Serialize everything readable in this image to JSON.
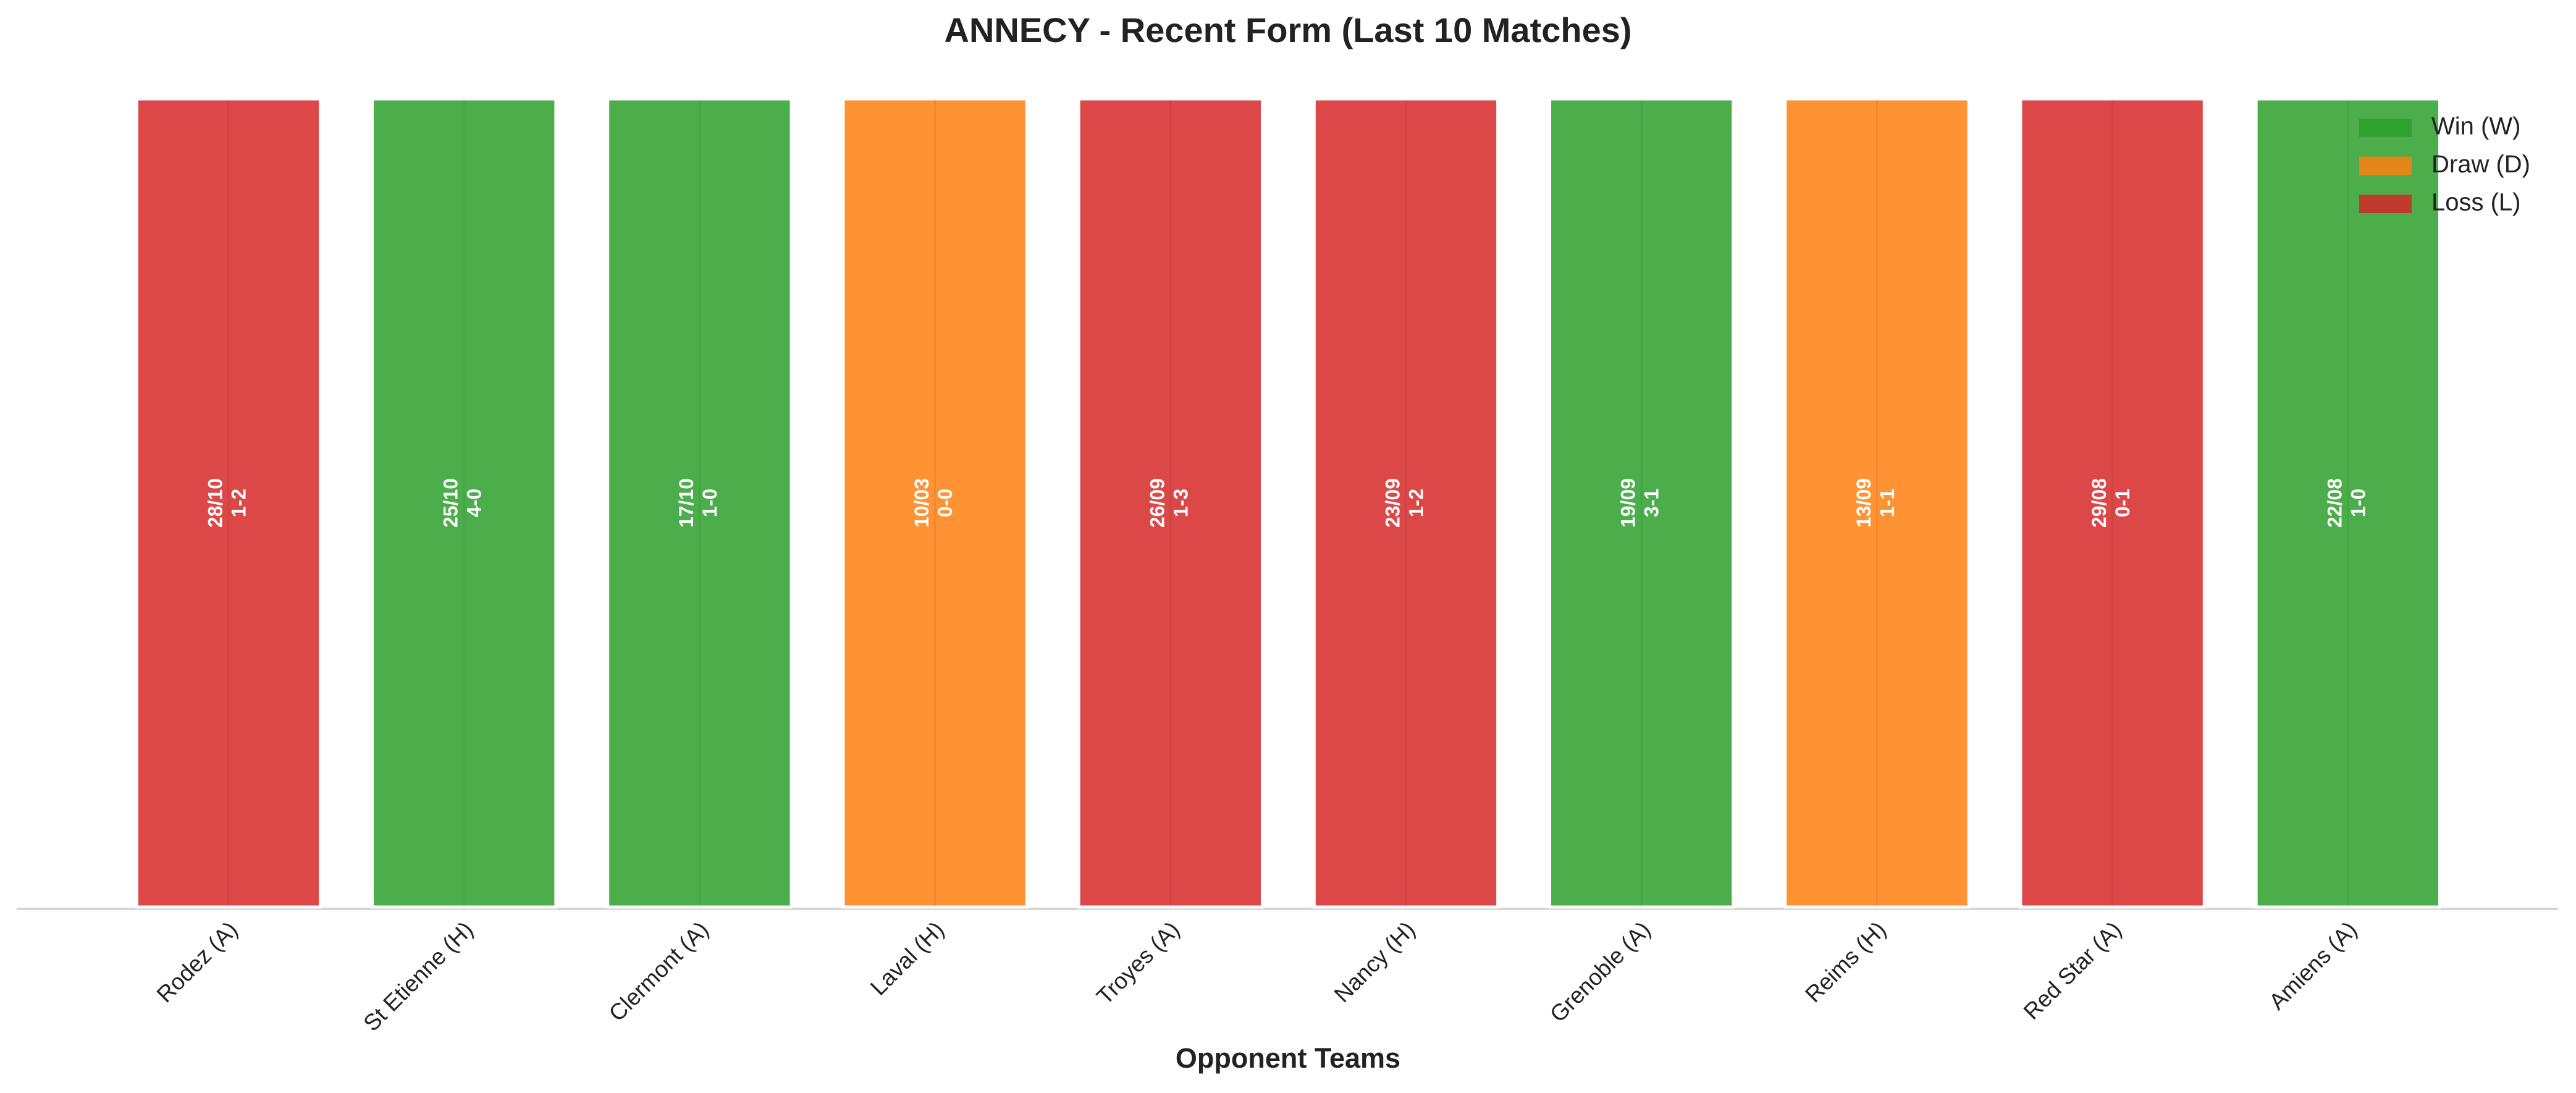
{
  "chart_data": {
    "type": "bar",
    "title": "ANNECY - Recent Form (Last 10 Matches)",
    "x_label": "Opponent Teams",
    "categories": [
      "Rodez (A)",
      "St Etienne (H)",
      "Clermont (A)",
      "Laval (H)",
      "Troyes (A)",
      "Nancy (H)",
      "Grenoble (A)",
      "Reims (H)",
      "Red Star (A)",
      "Amiens (A)"
    ],
    "values": [
      1,
      1,
      1,
      1,
      1,
      1,
      1,
      1,
      1,
      1
    ],
    "dates": [
      "28/10",
      "25/10",
      "17/10",
      "10/03",
      "26/09",
      "23/09",
      "19/09",
      "13/09",
      "29/08",
      "22/08"
    ],
    "scores": [
      "1-2",
      "4-0",
      "1-0",
      "0-0",
      "1-3",
      "1-2",
      "3-1",
      "1-1",
      "0-1",
      "1-0"
    ],
    "results": [
      "Loss (L)",
      "Win (W)",
      "Win (W)",
      "Draw (D)",
      "Loss (L)",
      "Loss (L)",
      "Win (W)",
      "Draw (D)",
      "Loss (L)",
      "Win (W)"
    ],
    "legend": [
      {
        "name": "Win (W)",
        "color": "#2ca02c"
      },
      {
        "name": "Draw (D)",
        "color": "#ff7f0e"
      },
      {
        "name": "Loss (L)",
        "color": "#d62728"
      }
    ],
    "legend_position": "upper right",
    "ylim": [
      0,
      1
    ]
  }
}
